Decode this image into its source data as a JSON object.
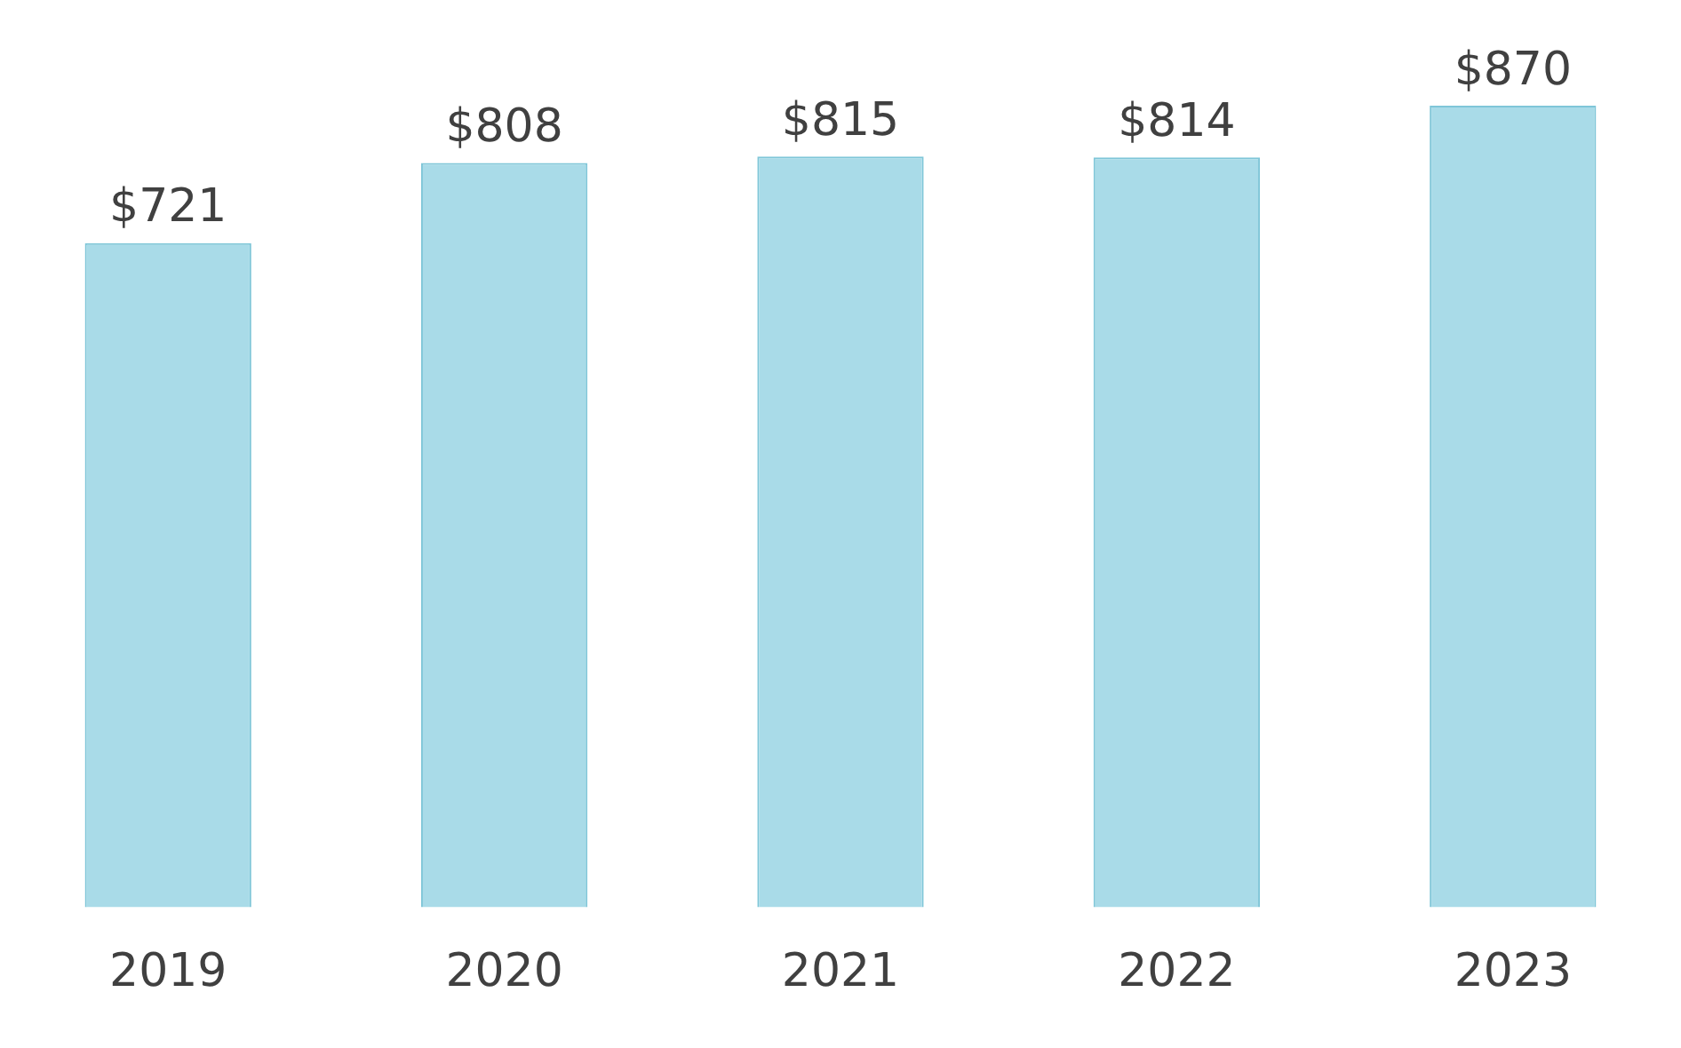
{
  "chart_data": {
    "type": "bar",
    "categories": [
      "2019",
      "2020",
      "2021",
      "2022",
      "2023"
    ],
    "values": [
      721,
      808,
      815,
      814,
      870
    ],
    "value_labels": [
      "$721",
      "$808",
      "$815",
      "$814",
      "$870"
    ],
    "color": "#a9dbe8",
    "grid": false,
    "legend": false
  }
}
